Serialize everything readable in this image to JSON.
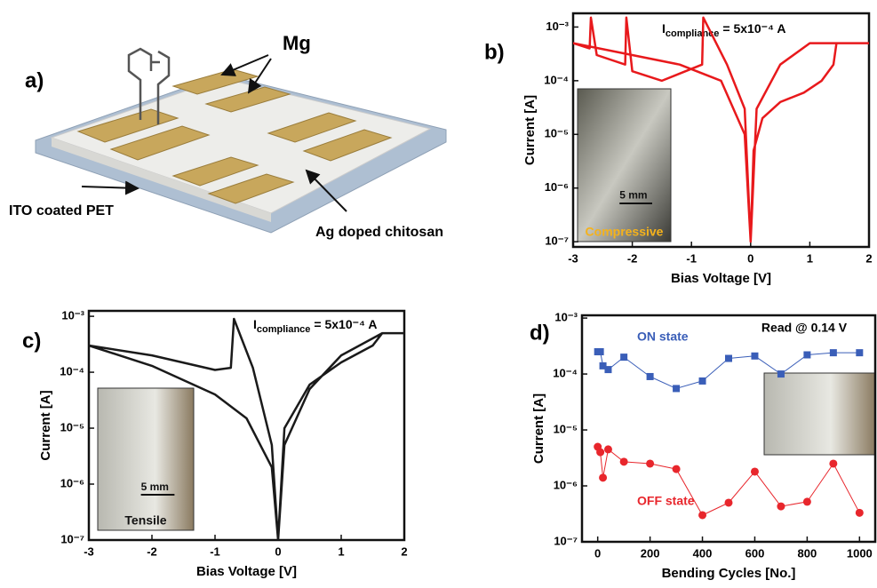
{
  "diagram": {
    "panel": "a)",
    "electrode_label": "Mg",
    "substrate_label": "ITO coated PET",
    "layer_label": "Ag doped chitosan"
  },
  "chart_data": [
    {
      "type": "line",
      "panel": "b)",
      "xlabel": "Bias Voltage [V]",
      "ylabel": "Current [A]",
      "color": "#e8191c",
      "xlim": [
        -3,
        2
      ],
      "xticks": [
        -3,
        -2,
        -1,
        0,
        1,
        2
      ],
      "ylog": true,
      "ylim": [
        8e-08,
        0.0018
      ],
      "yticks": [
        {
          "value": 1e-07,
          "label": "10⁻⁷"
        },
        {
          "value": 1e-06,
          "label": "10⁻⁶"
        },
        {
          "value": 1e-05,
          "label": "10⁻⁵"
        },
        {
          "value": 0.0001,
          "label": "10⁻⁴"
        },
        {
          "value": 0.001,
          "label": "10⁻³"
        }
      ],
      "annotation": {
        "main": "I",
        "sub": "compliance",
        "rest": "= 5x10⁻⁴ A"
      },
      "inset": {
        "scale": "5 mm",
        "caption": "Compressive"
      },
      "x": [
        0,
        0.05,
        0.2,
        0.5,
        0.9,
        1.2,
        1.4,
        1.45,
        2.0,
        1.0,
        0.5,
        0.1,
        0,
        -0.1,
        -0.4,
        -0.8,
        -0.82,
        -1.5,
        -2.0,
        -2.1,
        -2.12,
        -2.6,
        -2.7,
        -2.72,
        -3.0,
        -2.0,
        -1.2,
        -0.5,
        -0.1,
        0
      ],
      "values": [
        1e-07,
        5e-06,
        2e-05,
        4e-05,
        6e-05,
        0.0001,
        0.0002,
        0.0005,
        0.0005,
        0.0005,
        0.0002,
        3e-05,
        1e-07,
        3e-05,
        0.0002,
        0.0015,
        0.0002,
        0.0001,
        0.00015,
        0.0015,
        0.0002,
        0.0003,
        0.0015,
        0.0004,
        0.0005,
        0.0003,
        0.0002,
        0.0001,
        1e-05,
        1e-07
      ]
    },
    {
      "type": "line",
      "panel": "c)",
      "xlabel": "Bias Voltage [V]",
      "ylabel": "Current [A]",
      "color": "#1a1a1a",
      "xlim": [
        -3,
        2
      ],
      "xticks": [
        -3,
        -2,
        -1,
        0,
        1,
        2
      ],
      "ylog": true,
      "ylim": [
        1e-07,
        0.00125
      ],
      "yticks": [
        {
          "value": 1e-07,
          "label": "10⁻⁷"
        },
        {
          "value": 1e-06,
          "label": "10⁻⁶"
        },
        {
          "value": 1e-05,
          "label": "10⁻⁵"
        },
        {
          "value": 0.0001,
          "label": "10⁻⁴"
        },
        {
          "value": 0.001,
          "label": "10⁻³"
        }
      ],
      "annotation": {
        "main": "I",
        "sub": "compliance",
        "rest": "= 5x10⁻⁴ A"
      },
      "inset": {
        "scale": "5 mm",
        "caption": "Tensile"
      },
      "x": [
        0,
        0.1,
        0.5,
        1.0,
        1.5,
        1.65,
        2.0,
        1.65,
        1.0,
        0.5,
        0.1,
        0,
        -0.1,
        -0.4,
        -0.7,
        -0.75,
        -1.0,
        -2.0,
        -3.0,
        -2.0,
        -1.0,
        -0.5,
        -0.1,
        0
      ],
      "values": [
        1e-07,
        1e-05,
        6e-05,
        0.00015,
        0.0003,
        0.0005,
        0.0005,
        0.0005,
        0.0002,
        5e-05,
        5e-06,
        1e-07,
        5e-06,
        0.00012,
        0.0009,
        0.00012,
        0.00011,
        0.0002,
        0.0003,
        0.00013,
        4e-05,
        1.5e-05,
        2e-06,
        1e-07
      ]
    },
    {
      "type": "line",
      "panel": "d)",
      "xlabel": "Bending Cycles [No.]",
      "ylabel": "Current [A]",
      "xlim": [
        -60,
        1060
      ],
      "xticks": [
        0,
        200,
        400,
        600,
        800,
        1000
      ],
      "ylog": true,
      "ylim": [
        1e-07,
        0.00112
      ],
      "yticks": [
        {
          "value": 1e-07,
          "label": "10⁻⁷"
        },
        {
          "value": 1e-06,
          "label": "10⁻⁶"
        },
        {
          "value": 1e-05,
          "label": "10⁻⁵"
        },
        {
          "value": 0.0001,
          "label": "10⁻⁴"
        },
        {
          "value": 0.001,
          "label": "10⁻³"
        }
      ],
      "annotation": "Read @ 0.14 V",
      "x": [
        0,
        10,
        20,
        40,
        100,
        200,
        300,
        400,
        500,
        600,
        700,
        800,
        900,
        1000
      ],
      "series": [
        {
          "name": "ON state",
          "color": "#3a5eb8",
          "marker": "square",
          "values": [
            0.00025,
            0.00025,
            0.00014,
            0.00012,
            0.0002,
            9e-05,
            5.5e-05,
            7.5e-05,
            0.00019,
            0.00021,
            0.0001,
            0.00022,
            0.00024,
            0.00024
          ]
        },
        {
          "name": "OFF state",
          "color": "#e8262c",
          "marker": "circle",
          "values": [
            5e-06,
            4e-06,
            1.4e-06,
            4.5e-06,
            2.7e-06,
            2.5e-06,
            2e-06,
            3e-07,
            5e-07,
            1.8e-06,
            4.3e-07,
            5.2e-07,
            2.5e-06,
            3.3e-07
          ]
        }
      ]
    }
  ]
}
